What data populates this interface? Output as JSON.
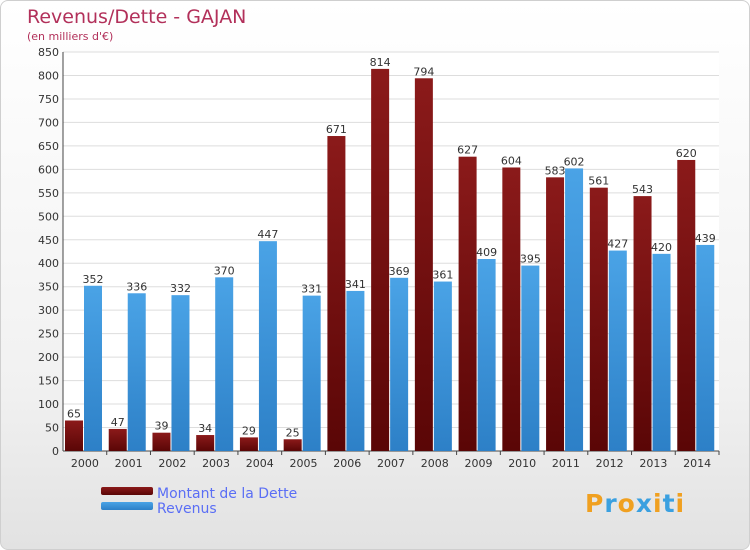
{
  "title": "Revenus/Dette - GAJAN",
  "subtitle": "(en milliers d'€)",
  "colors": {
    "dette": "#8b1a1a",
    "dette_dark": "#5a0606",
    "revenus": "#4aa3e6",
    "revenus_dark": "#2d80c7",
    "title": "#b2305a",
    "legend_text": "#5a6ef5"
  },
  "legend": {
    "dette_label": "Montant de la Dette",
    "revenus_label": "Revenus"
  },
  "logo": {
    "text": "Proxiti",
    "letter_colors": [
      "#f0a020",
      "#3aa0e0",
      "#f0a020",
      "#3aa0e0",
      "#f0a020",
      "#3aa0e0",
      "#f0a020"
    ]
  },
  "chart_data": {
    "type": "bar",
    "title": "Revenus/Dette - GAJAN",
    "subtitle": "(en milliers d'€)",
    "categories": [
      "2000",
      "2001",
      "2002",
      "2003",
      "2004",
      "2005",
      "2006",
      "2007",
      "2008",
      "2009",
      "2010",
      "2011",
      "2012",
      "2013",
      "2014"
    ],
    "series": [
      {
        "name": "Montant de la Dette",
        "values": [
          65,
          47,
          39,
          34,
          29,
          25,
          671,
          814,
          794,
          627,
          604,
          583,
          561,
          543,
          620
        ]
      },
      {
        "name": "Revenus",
        "values": [
          352,
          336,
          332,
          370,
          447,
          331,
          341,
          369,
          361,
          409,
          395,
          602,
          427,
          420,
          439
        ]
      }
    ],
    "ylim": [
      0,
      850
    ],
    "ytick_step": 50,
    "grid": true,
    "legend_position": "bottom-left"
  }
}
